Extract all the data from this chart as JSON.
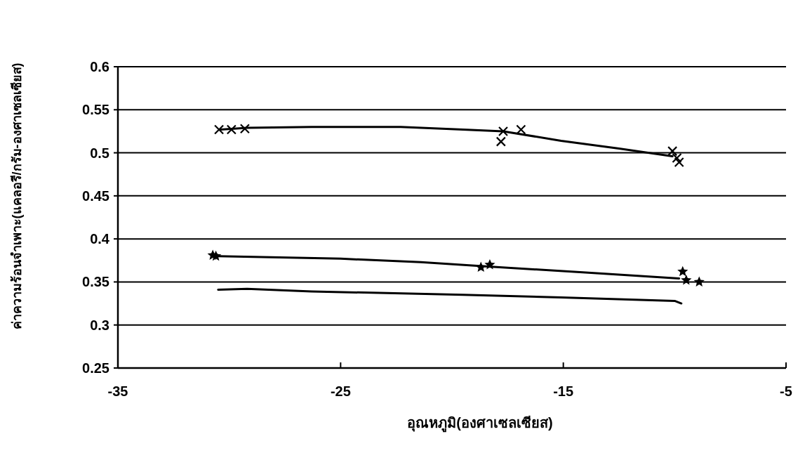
{
  "chart_data": {
    "type": "scatter",
    "xlabel": "อุณหภูมิ(องศาเซลเซียส)",
    "ylabel": "ค่าความร้อนจำเพาะ(แคลอรี/กรัม-องศาเซลเซียส)",
    "xlim": [
      -35,
      -5
    ],
    "xticks": [
      -35,
      -25,
      -15,
      -5
    ],
    "ylim": [
      0.25,
      0.6
    ],
    "yticks": [
      0.25,
      0.3,
      0.35,
      0.4,
      0.45,
      0.5,
      0.55,
      0.6
    ],
    "grid": "y",
    "series": [
      {
        "marker": "cross",
        "color": "#000000",
        "x": [
          -30.46,
          -29.9,
          -29.3,
          -17.7,
          -17.8,
          -16.9,
          -10.1,
          -9.9,
          -9.8
        ],
        "values": [
          0.527,
          0.527,
          0.528,
          0.525,
          0.513,
          0.527,
          0.502,
          0.494,
          0.489
        ]
      },
      {
        "type": "line",
        "marker": "none",
        "color": "#000000",
        "x": [
          -30.4,
          -29.2,
          -26.3,
          -22.3,
          -19.5,
          -17.7,
          -15.1,
          -12.5,
          -10.1
        ],
        "values": [
          0.527,
          0.529,
          0.53,
          0.53,
          0.527,
          0.525,
          0.514,
          0.505,
          0.496
        ]
      },
      {
        "marker": "star",
        "color": "#000000",
        "x": [
          -30.74,
          -30.6,
          -18.7,
          -18.3,
          -9.64,
          -9.48,
          -8.9
        ],
        "values": [
          0.381,
          0.38,
          0.367,
          0.37,
          0.362,
          0.352,
          0.35
        ]
      },
      {
        "type": "line",
        "marker": "none",
        "color": "#000000",
        "x": [
          -30.5,
          -25,
          -21.4,
          -18.5,
          -14,
          -9.8
        ],
        "values": [
          0.38,
          0.377,
          0.373,
          0.368,
          0.361,
          0.354
        ]
      },
      {
        "type": "line",
        "marker": "none",
        "color": "#000000",
        "x": [
          -30.5,
          -29.2,
          -26.3,
          -19.5,
          -15.1,
          -10,
          -9.7
        ],
        "values": [
          0.341,
          0.342,
          0.339,
          0.335,
          0.332,
          0.328,
          0.325
        ]
      }
    ]
  }
}
